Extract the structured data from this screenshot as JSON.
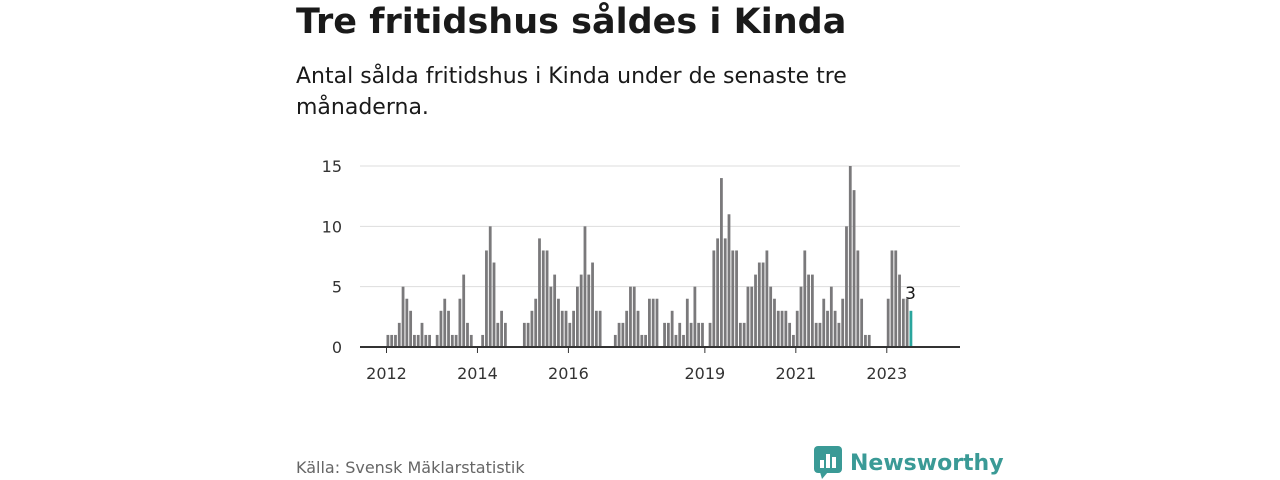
{
  "title": "Tre fritidshus såldes i Kinda",
  "subtitle": "Antal sålda fritidshus i Kinda under de senaste tre månaderna.",
  "source": "Källa: Svensk Mäklarstatistik",
  "brand": "Newsworthy",
  "colors": {
    "bar": "#7a797b",
    "highlight": "#2aa59d",
    "brand": "#3a9a96"
  },
  "chart_data": {
    "type": "bar",
    "title": "Tre fritidshus såldes i Kinda",
    "xlabel": "",
    "ylabel": "",
    "ylim": [
      0,
      15
    ],
    "yticks": [
      0,
      5,
      10,
      15
    ],
    "xtick_labels": [
      {
        "label": "2012",
        "x": 2012
      },
      {
        "label": "2014",
        "x": 2014
      },
      {
        "label": "2016",
        "x": 2016
      },
      {
        "label": "2019",
        "x": 2019
      },
      {
        "label": "2021",
        "x": 2021
      },
      {
        "label": "2023",
        "x": 2023
      }
    ],
    "start": "2012-01",
    "values": [
      1,
      1,
      1,
      2,
      5,
      4,
      3,
      1,
      1,
      2,
      1,
      1,
      0,
      1,
      3,
      4,
      3,
      1,
      1,
      4,
      6,
      2,
      1,
      0,
      0,
      1,
      8,
      10,
      7,
      2,
      3,
      2,
      0,
      0,
      0,
      0,
      2,
      2,
      3,
      4,
      9,
      8,
      8,
      5,
      6,
      4,
      3,
      3,
      2,
      3,
      5,
      6,
      10,
      6,
      7,
      3,
      3,
      0,
      0,
      0,
      1,
      2,
      2,
      3,
      5,
      5,
      3,
      1,
      1,
      4,
      4,
      4,
      0,
      2,
      2,
      3,
      1,
      2,
      1,
      4,
      2,
      5,
      2,
      2,
      0,
      2,
      8,
      9,
      14,
      9,
      11,
      8,
      8,
      2,
      2,
      5,
      5,
      6,
      7,
      7,
      8,
      5,
      4,
      3,
      3,
      3,
      2,
      1,
      3,
      5,
      8,
      6,
      6,
      2,
      2,
      4,
      3,
      5,
      3,
      2,
      4,
      10,
      15,
      13,
      8,
      4,
      1,
      1,
      0,
      0,
      0,
      0,
      4,
      8,
      8,
      6,
      4,
      4,
      3
    ],
    "highlight_last": true,
    "last_label": "3",
    "grid": true,
    "legend": "none"
  }
}
